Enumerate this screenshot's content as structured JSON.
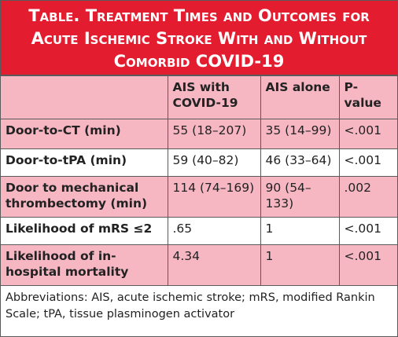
{
  "title": "Table. Treatment Times and Outcomes for Acute Ischemic Stroke With and Without Comorbid COVID-19",
  "table": {
    "header": [
      "",
      "AIS with COVID-19",
      "AIS alone",
      "P-value"
    ],
    "rows": [
      [
        "Door-to-CT (min)",
        "55 (18–207)",
        "35 (14–99)",
        "<.001"
      ],
      [
        "Door-to-tPA (min)",
        "59 (40–82)",
        "46 (33–64)",
        "<.001"
      ],
      [
        "Door to mechanical thrombectomy (min)",
        "114 (74–169)",
        "90 (54–133)",
        ".002"
      ],
      [
        "Likelihood of mRS ≤2",
        ".65",
        "1",
        "<.001"
      ],
      [
        "Likelihood of in-hospital mortality",
        "4.34",
        "1",
        "<.001"
      ]
    ]
  },
  "footnote": "Abbreviations: AIS, acute ischemic stroke; mRS, modified Rankin Scale; tPA, tissue plasminogen activator"
}
